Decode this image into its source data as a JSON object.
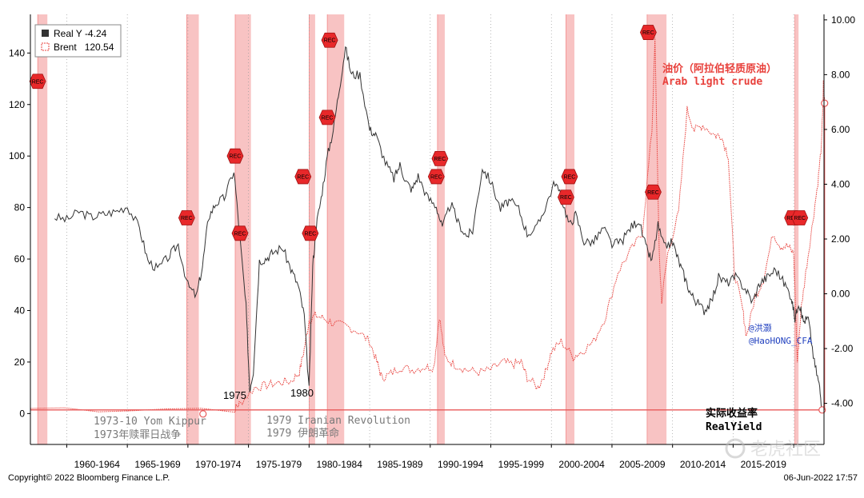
{
  "chart_data": {
    "type": "line",
    "x_range": [
      1957.0,
      2022.5
    ],
    "left_axis": {
      "ylim": [
        -12,
        155
      ],
      "ticks": [
        0,
        20,
        40,
        60,
        80,
        100,
        120,
        140
      ]
    },
    "right_axis": {
      "ylim": [
        -5.5,
        10.2
      ],
      "ticks": [
        "-4.00",
        "-2.00",
        "0.00",
        "2.00",
        "4.00",
        "6.00",
        "8.00",
        "10.00"
      ]
    },
    "x_ticks": [
      {
        "label": "1960-1964",
        "x": 1962.5
      },
      {
        "label": "1965-1969",
        "x": 1967.5
      },
      {
        "label": "1970-1974",
        "x": 1972.5
      },
      {
        "label": "1975-1979",
        "x": 1977.5
      },
      {
        "label": "1980-1984",
        "x": 1982.5
      },
      {
        "label": "1985-1989",
        "x": 1987.5
      },
      {
        "label": "1990-1994",
        "x": 1992.5
      },
      {
        "label": "1995-1999",
        "x": 1997.5
      },
      {
        "label": "2000-2004",
        "x": 2002.5
      },
      {
        "label": "2005-2009",
        "x": 2007.5
      },
      {
        "label": "2010-2014",
        "x": 2012.5
      },
      {
        "label": "2015-2019",
        "x": 2017.5
      }
    ],
    "recessions": [
      [
        1957.6,
        1958.4
      ],
      [
        1969.9,
        1970.9
      ],
      [
        1973.9,
        1975.2
      ],
      [
        1980.0,
        1980.5
      ],
      [
        1981.5,
        1982.9
      ],
      [
        1990.6,
        1991.2
      ],
      [
        2001.2,
        2001.9
      ],
      [
        2007.9,
        2009.5
      ],
      [
        2020.1,
        2020.4
      ]
    ],
    "rec_markers": [
      {
        "label": "REC",
        "x": 1957.6,
        "y": 129
      },
      {
        "label": "REC",
        "x": 1969.9,
        "y": 76
      },
      {
        "label": "REC",
        "x": 1973.9,
        "y": 100
      },
      {
        "label": "REC",
        "x": 1974.3,
        "y": 70
      },
      {
        "label": "REC",
        "x": 1979.5,
        "y": 92
      },
      {
        "label": "REC",
        "x": 1980.1,
        "y": 70
      },
      {
        "label": "REC",
        "x": 1981.7,
        "y": 145
      },
      {
        "label": "REC",
        "x": 1981.5,
        "y": 115
      },
      {
        "label": "REC",
        "x": 1990.8,
        "y": 99
      },
      {
        "label": "REC",
        "x": 1990.5,
        "y": 92
      },
      {
        "label": "REC",
        "x": 2001.5,
        "y": 92
      },
      {
        "label": "REC",
        "x": 2001.2,
        "y": 84
      },
      {
        "label": "REC",
        "x": 2008.0,
        "y": 148
      },
      {
        "label": "REC",
        "x": 2008.4,
        "y": 86
      },
      {
        "label": "REC",
        "x": 2019.9,
        "y": 76
      },
      {
        "label": "REC",
        "x": 2020.5,
        "y": 76
      }
    ],
    "series": [
      {
        "name": "Real Y",
        "last": "-4.24",
        "axis": "right",
        "color": "#333333",
        "x": [
          1959.0,
          1960.0,
          1961.0,
          1962.0,
          1963.0,
          1964.0,
          1965.0,
          1966.0,
          1966.7,
          1967.5,
          1968.5,
          1969.2,
          1970.0,
          1970.7,
          1971.2,
          1971.7,
          1972.3,
          1973.0,
          1973.8,
          1974.3,
          1974.8,
          1975.1,
          1975.4,
          1975.9,
          1976.5,
          1977.0,
          1977.8,
          1978.5,
          1979.1,
          1979.6,
          1980.0,
          1980.3,
          1980.6,
          1981.0,
          1981.5,
          1982.0,
          1982.5,
          1983.0,
          1983.5,
          1984.2,
          1985.0,
          1985.5,
          1986.3,
          1987.0,
          1987.5,
          1988.0,
          1988.5,
          1989.0,
          1989.8,
          1990.5,
          1991.0,
          1991.7,
          1992.3,
          1993.0,
          1993.5,
          1994.3,
          1995.0,
          1995.8,
          1996.5,
          1997.3,
          1998.0,
          1998.8,
          1999.6,
          2000.3,
          2000.9,
          2001.5,
          2002.0,
          2002.7,
          2003.5,
          2004.3,
          2005.0,
          2005.8,
          2006.5,
          2007.2,
          2007.8,
          2008.3,
          2008.8,
          2009.3,
          2010.0,
          2010.5,
          2011.0,
          2011.5,
          2012.0,
          2012.6,
          2013.2,
          2013.8,
          2014.5,
          2015.2,
          2016.0,
          2016.6,
          2017.2,
          2017.8,
          2018.5,
          2019.2,
          2019.8,
          2020.1,
          2020.4,
          2020.8,
          2021.2,
          2021.7,
          2022.1,
          2022.35
        ],
        "y": [
          2.8,
          2.7,
          3.0,
          2.8,
          2.9,
          3.0,
          3.2,
          2.4,
          1.2,
          0.9,
          1.4,
          1.8,
          0.3,
          -0.1,
          1.0,
          2.8,
          3.3,
          3.5,
          4.5,
          2.0,
          -0.5,
          -3.5,
          -2.8,
          1.2,
          1.3,
          1.5,
          1.7,
          0.9,
          0.3,
          -0.8,
          -3.5,
          1.0,
          2.5,
          3.5,
          5.0,
          6.0,
          7.5,
          9.0,
          8.0,
          8.0,
          6.0,
          5.8,
          4.8,
          4.2,
          4.7,
          4.1,
          3.8,
          4.3,
          3.5,
          3.2,
          2.4,
          3.3,
          2.6,
          2.1,
          2.3,
          4.6,
          4.1,
          3.1,
          3.4,
          3.1,
          2.2,
          2.4,
          3.3,
          4.1,
          3.4,
          2.5,
          2.9,
          1.9,
          1.9,
          2.4,
          1.8,
          1.9,
          2.4,
          2.7,
          1.7,
          1.2,
          2.5,
          1.7,
          1.9,
          1.2,
          0.6,
          0.0,
          -0.3,
          -0.6,
          -0.3,
          0.6,
          0.4,
          0.6,
          0.2,
          -0.3,
          0.4,
          0.6,
          0.9,
          0.4,
          -0.1,
          -0.9,
          -0.3,
          -1.0,
          -0.9,
          -2.5,
          -3.3,
          -4.24
        ]
      },
      {
        "name": "Brent",
        "last": "120.54",
        "axis": "left",
        "color": "#e8413c",
        "x": [
          1957.0,
          1973.9,
          1974.3,
          1975.5,
          1976.5,
          1977.5,
          1978.5,
          1979.2,
          1979.6,
          1980.0,
          1980.5,
          1981.2,
          1982.0,
          1983.0,
          1984.0,
          1985.0,
          1985.6,
          1986.0,
          1986.6,
          1987.5,
          1988.5,
          1989.5,
          1990.3,
          1990.75,
          1991.2,
          1992.0,
          1993.0,
          1994.0,
          1995.0,
          1996.0,
          1996.8,
          1997.5,
          1998.0,
          1998.9,
          1999.5,
          2000.0,
          2000.8,
          2001.8,
          2002.5,
          2003.5,
          2004.5,
          2005.5,
          2006.5,
          2007.5,
          2008.3,
          2008.55,
          2008.9,
          2009.1,
          2009.6,
          2010.5,
          2011.2,
          2011.8,
          2012.5,
          2013.5,
          2014.0,
          2014.6,
          2015.1,
          2015.8,
          2016.1,
          2016.8,
          2017.5,
          2018.3,
          2018.9,
          2019.5,
          2020.0,
          2020.3,
          2020.6,
          2021.0,
          2021.5,
          2022.0,
          2022.3,
          2022.45,
          2022.55
        ],
        "y": [
          2,
          2,
          4,
          10,
          11,
          12,
          12.5,
          16,
          25,
          36,
          38,
          37,
          35,
          34,
          32,
          28,
          20,
          14,
          15,
          18,
          17,
          18,
          18,
          38,
          22,
          19,
          17,
          16,
          17,
          20,
          19,
          20,
          14,
          10,
          16,
          24,
          28,
          22,
          24,
          28,
          38,
          55,
          63,
          70,
          110,
          145,
          62,
          44,
          62,
          78,
          118,
          110,
          112,
          108,
          108,
          100,
          55,
          40,
          30,
          45,
          52,
          70,
          65,
          65,
          62,
          20,
          40,
          55,
          72,
          90,
          105,
          128,
          120.5
        ]
      }
    ],
    "reference_level": -4.24,
    "legend": "top-left",
    "annotations": {
      "arab_crude_cn": "油价（阿拉伯轻质原油）",
      "arab_crude_en": "Arab light crude",
      "handle_cn": "@洪灏",
      "handle_en": "@HaoHONG_CFA",
      "yom_kippur_en": "1973-10 Yom Kippur",
      "yom_kippur_cn": "1973年赎罪日战争",
      "iran_en": "1979 Iranian Revolution",
      "iran_cn": "1979 伊朗革命",
      "label_1975": "1975",
      "label_1980": "1980",
      "real_yield_cn": "实际收益率",
      "real_yield_en": "RealYield"
    }
  },
  "footer": {
    "copyright": "Copyright© 2022 Bloomberg Finance L.P.",
    "timestamp": "06-Jun-2022 17:57",
    "watermark": "老虎社区"
  },
  "colors": {
    "recession_band": "#f7b9b9",
    "rec_marker": "#e8282a",
    "real_y": "#333333",
    "brent": "#e8413c",
    "reference": "#e85a5a",
    "handle": "#1f3fbf",
    "annotation_grey": "#7a7a7a"
  }
}
